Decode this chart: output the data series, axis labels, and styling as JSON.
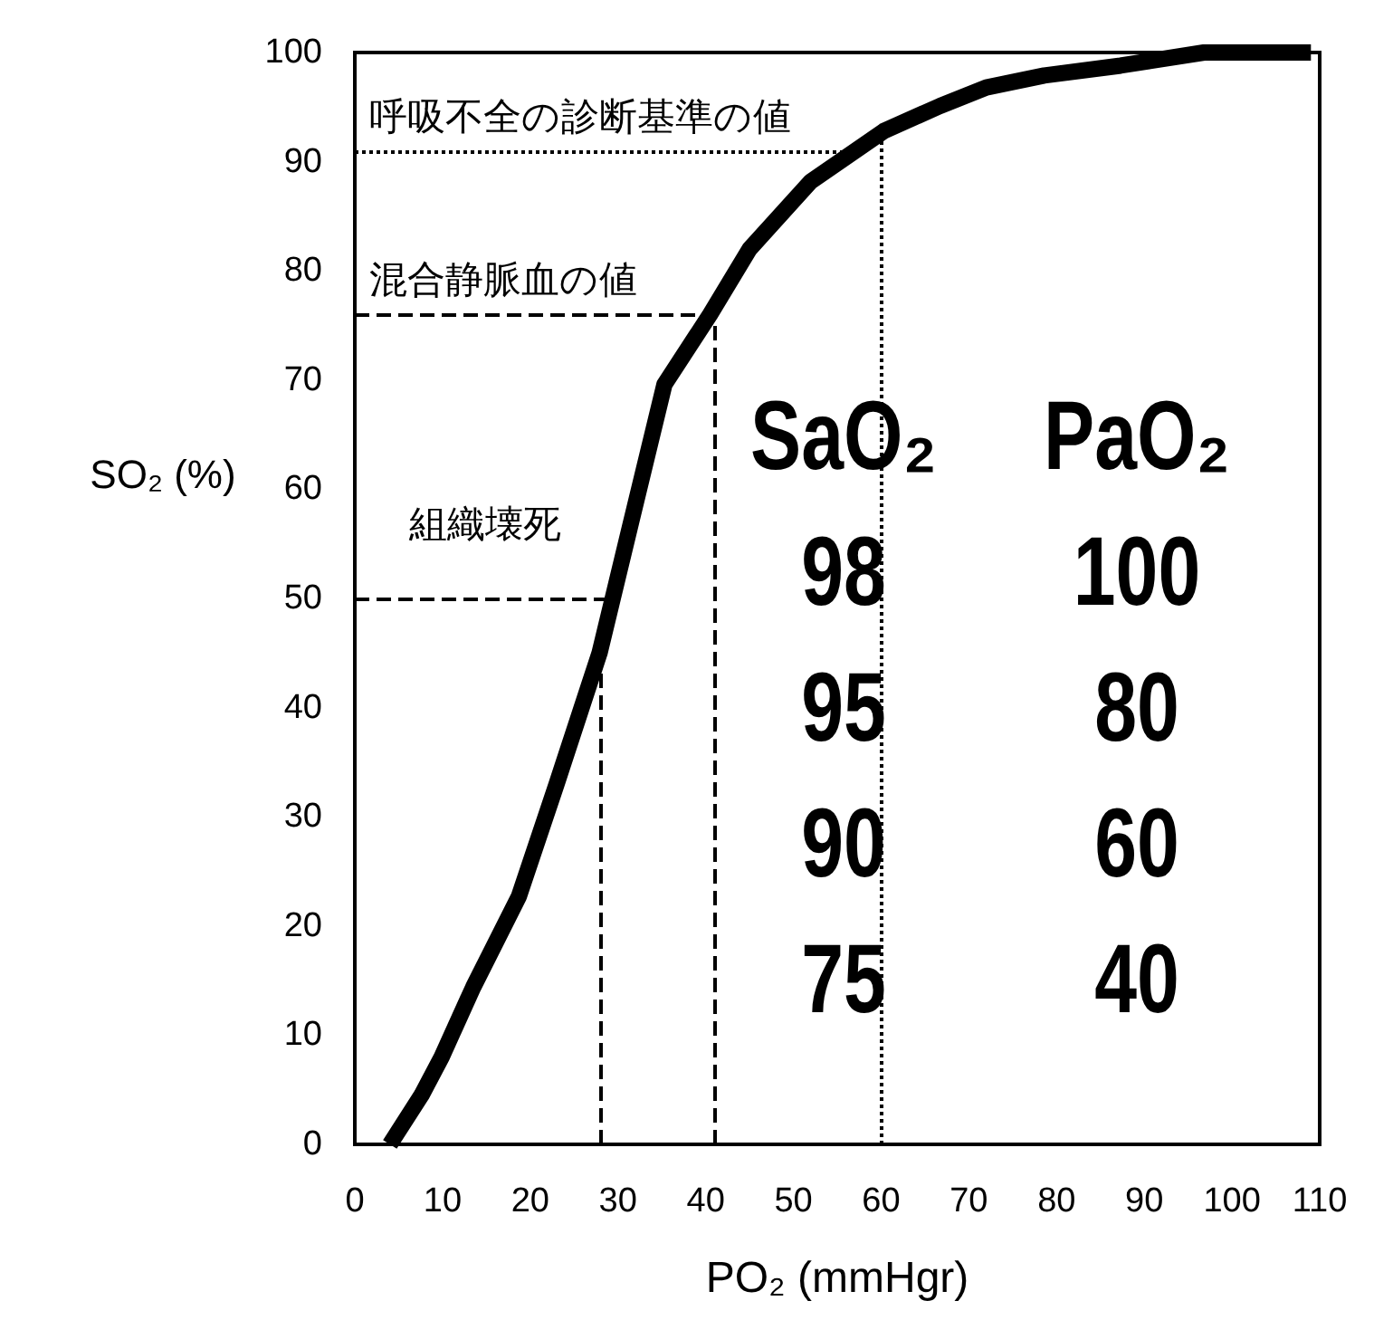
{
  "chart_data": {
    "type": "line",
    "xlabel": "PO₂ (mmHgr)",
    "ylabel": "SO₂ (%)",
    "x": [
      4,
      7.6,
      9.9,
      13.5,
      18.7,
      23,
      27.9,
      31.5,
      35.3,
      40.5,
      45,
      52,
      60.3,
      66.7,
      72,
      78.6,
      87.3,
      96.8,
      109
    ],
    "series": [
      {
        "color": "#000000",
        "values": [
          0,
          4.5,
          8,
          14.4,
          22.7,
          33,
          45,
          57,
          69.6,
          76,
          82,
          88.2,
          92.8,
          95.1,
          96.8,
          97.9,
          98.8,
          100,
          100
        ]
      }
    ],
    "xlim": [
      0,
      110
    ],
    "xticks": [
      0,
      10,
      20,
      30,
      40,
      50,
      60,
      70,
      80,
      90,
      100,
      110
    ],
    "ylim": [
      0,
      100
    ],
    "yticks": [
      0,
      10,
      20,
      30,
      40,
      50,
      60,
      70,
      80,
      90,
      100
    ],
    "ref_lines": [
      {
        "axis": "y",
        "value": 91,
        "label": "呼吸不全の診断基準の値",
        "line_style": "dotted"
      },
      {
        "axis": "y",
        "value": 76,
        "label": "混合静脈血の値",
        "line_style": "dashed"
      },
      {
        "axis": "y",
        "value": 50,
        "label": "組織壊死",
        "line_style": "dashed"
      },
      {
        "axis": "x",
        "value": 28,
        "line_style": "dashed"
      },
      {
        "axis": "x",
        "value": 41,
        "line_style": "dashed"
      },
      {
        "axis": "x",
        "value": 60,
        "line_style": "dotted"
      }
    ],
    "annotations": [
      "SaO₂",
      "PaO₂",
      "98",
      "100",
      "95",
      "80",
      "90",
      "60",
      "75",
      "40"
    ],
    "marker": "none",
    "line_style": "solid"
  }
}
